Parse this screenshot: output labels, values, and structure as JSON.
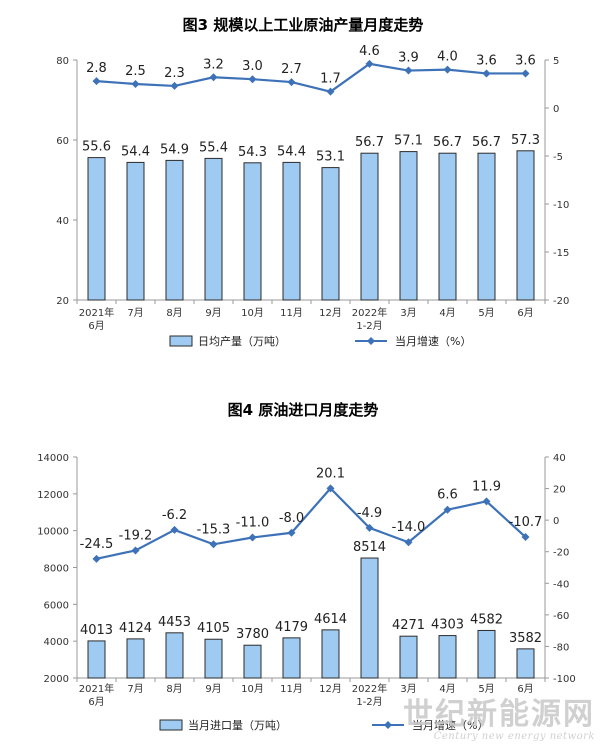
{
  "charts": [
    {
      "title": "图3 规模以上工业原油产量月度走势",
      "bar_legend": "日均产量（万吨）",
      "line_legend": "当月增速（%）",
      "left_ticks": [
        "20",
        "40",
        "60",
        "80"
      ],
      "right_ticks": [
        "5",
        "0",
        "-5",
        "-10",
        "-15",
        "-20"
      ],
      "x_labels": [
        [
          "2021年",
          "6月"
        ],
        [
          "7月"
        ],
        [
          "8月"
        ],
        [
          "9月"
        ],
        [
          "10月"
        ],
        [
          "11月"
        ],
        [
          "12月"
        ],
        [
          "2022年",
          "1-2月"
        ],
        [
          "3月"
        ],
        [
          "4月"
        ],
        [
          "5月"
        ],
        [
          "6月"
        ]
      ],
      "bar_labels": [
        "55.6",
        "54.4",
        "54.9",
        "55.4",
        "54.3",
        "54.4",
        "53.1",
        "56.7",
        "57.1",
        "56.7",
        "56.7",
        "57.3"
      ],
      "line_labels": [
        "2.8",
        "2.5",
        "2.3",
        "3.2",
        "3.0",
        "2.7",
        "1.7",
        "4.6",
        "3.9",
        "4.0",
        "3.6",
        "3.6"
      ]
    },
    {
      "title": "图4 原油进口月度走势",
      "bar_legend": "当月进口量（万吨）",
      "line_legend": "当月增速（%）",
      "left_ticks": [
        "2000",
        "4000",
        "6000",
        "8000",
        "10000",
        "12000",
        "14000"
      ],
      "right_ticks": [
        "40",
        "20",
        "0",
        "-20",
        "-40",
        "-60",
        "-80",
        "-100"
      ],
      "x_labels": [
        [
          "2021年",
          "6月"
        ],
        [
          "7月"
        ],
        [
          "8月"
        ],
        [
          "9月"
        ],
        [
          "10月"
        ],
        [
          "11月"
        ],
        [
          "12月"
        ],
        [
          "2022年",
          "1-2月"
        ],
        [
          "3月"
        ],
        [
          "4月"
        ],
        [
          "5月"
        ],
        [
          "6月"
        ]
      ],
      "bar_labels": [
        "4013",
        "4124",
        "4453",
        "4105",
        "3780",
        "4179",
        "4614",
        "8514",
        "4271",
        "4303",
        "4582",
        "3582"
      ],
      "line_labels": [
        "-24.5",
        "-19.2",
        "-6.2",
        "-15.3",
        "-11.0",
        "-8.0",
        "20.1",
        "-4.9",
        "-14.0",
        "6.6",
        "11.9",
        "-10.7"
      ]
    }
  ],
  "chart_data": [
    {
      "type": "bar",
      "title": "图3 规模以上工业原油产量月度走势",
      "categories": [
        "2021年6月",
        "7月",
        "8月",
        "9月",
        "10月",
        "11月",
        "12月",
        "2022年1-2月",
        "3月",
        "4月",
        "5月",
        "6月"
      ],
      "series": [
        {
          "name": "日均产量（万吨）",
          "type": "bar",
          "axis": "left",
          "values": [
            55.6,
            54.4,
            54.9,
            55.4,
            54.3,
            54.4,
            53.1,
            56.7,
            57.1,
            56.7,
            56.7,
            57.3
          ]
        },
        {
          "name": "当月增速（%）",
          "type": "line",
          "axis": "right",
          "values": [
            2.8,
            2.5,
            2.3,
            3.2,
            3.0,
            2.7,
            1.7,
            4.6,
            3.9,
            4.0,
            3.6,
            3.6
          ]
        }
      ],
      "ylim": [
        20,
        80
      ],
      "y2lim": [
        -20,
        5
      ],
      "grid": false,
      "legend": "bottom",
      "colors": {
        "bar_fill": "#9fcbf2",
        "bar_stroke": "#2b2b2b",
        "line": "#3d72b8"
      }
    },
    {
      "type": "bar",
      "title": "图4 原油进口月度走势",
      "categories": [
        "2021年6月",
        "7月",
        "8月",
        "9月",
        "10月",
        "11月",
        "12月",
        "2022年1-2月",
        "3月",
        "4月",
        "5月",
        "6月"
      ],
      "series": [
        {
          "name": "当月进口量（万吨）",
          "type": "bar",
          "axis": "left",
          "values": [
            4013,
            4124,
            4453,
            4105,
            3780,
            4179,
            4614,
            8514,
            4271,
            4303,
            4582,
            3582
          ]
        },
        {
          "name": "当月增速（%）",
          "type": "line",
          "axis": "right",
          "values": [
            -24.5,
            -19.2,
            -6.2,
            -15.3,
            -11.0,
            -8.0,
            20.1,
            -4.9,
            -14.0,
            6.6,
            11.9,
            -10.7
          ]
        }
      ],
      "ylim": [
        2000,
        14000
      ],
      "y2lim": [
        -100,
        40
      ],
      "grid": false,
      "legend": "bottom",
      "colors": {
        "bar_fill": "#9fcbf2",
        "bar_stroke": "#2b2b2b",
        "line": "#3d72b8"
      }
    }
  ],
  "watermark": {
    "cn": "世纪新能源网",
    "en": "Century new energy network"
  }
}
